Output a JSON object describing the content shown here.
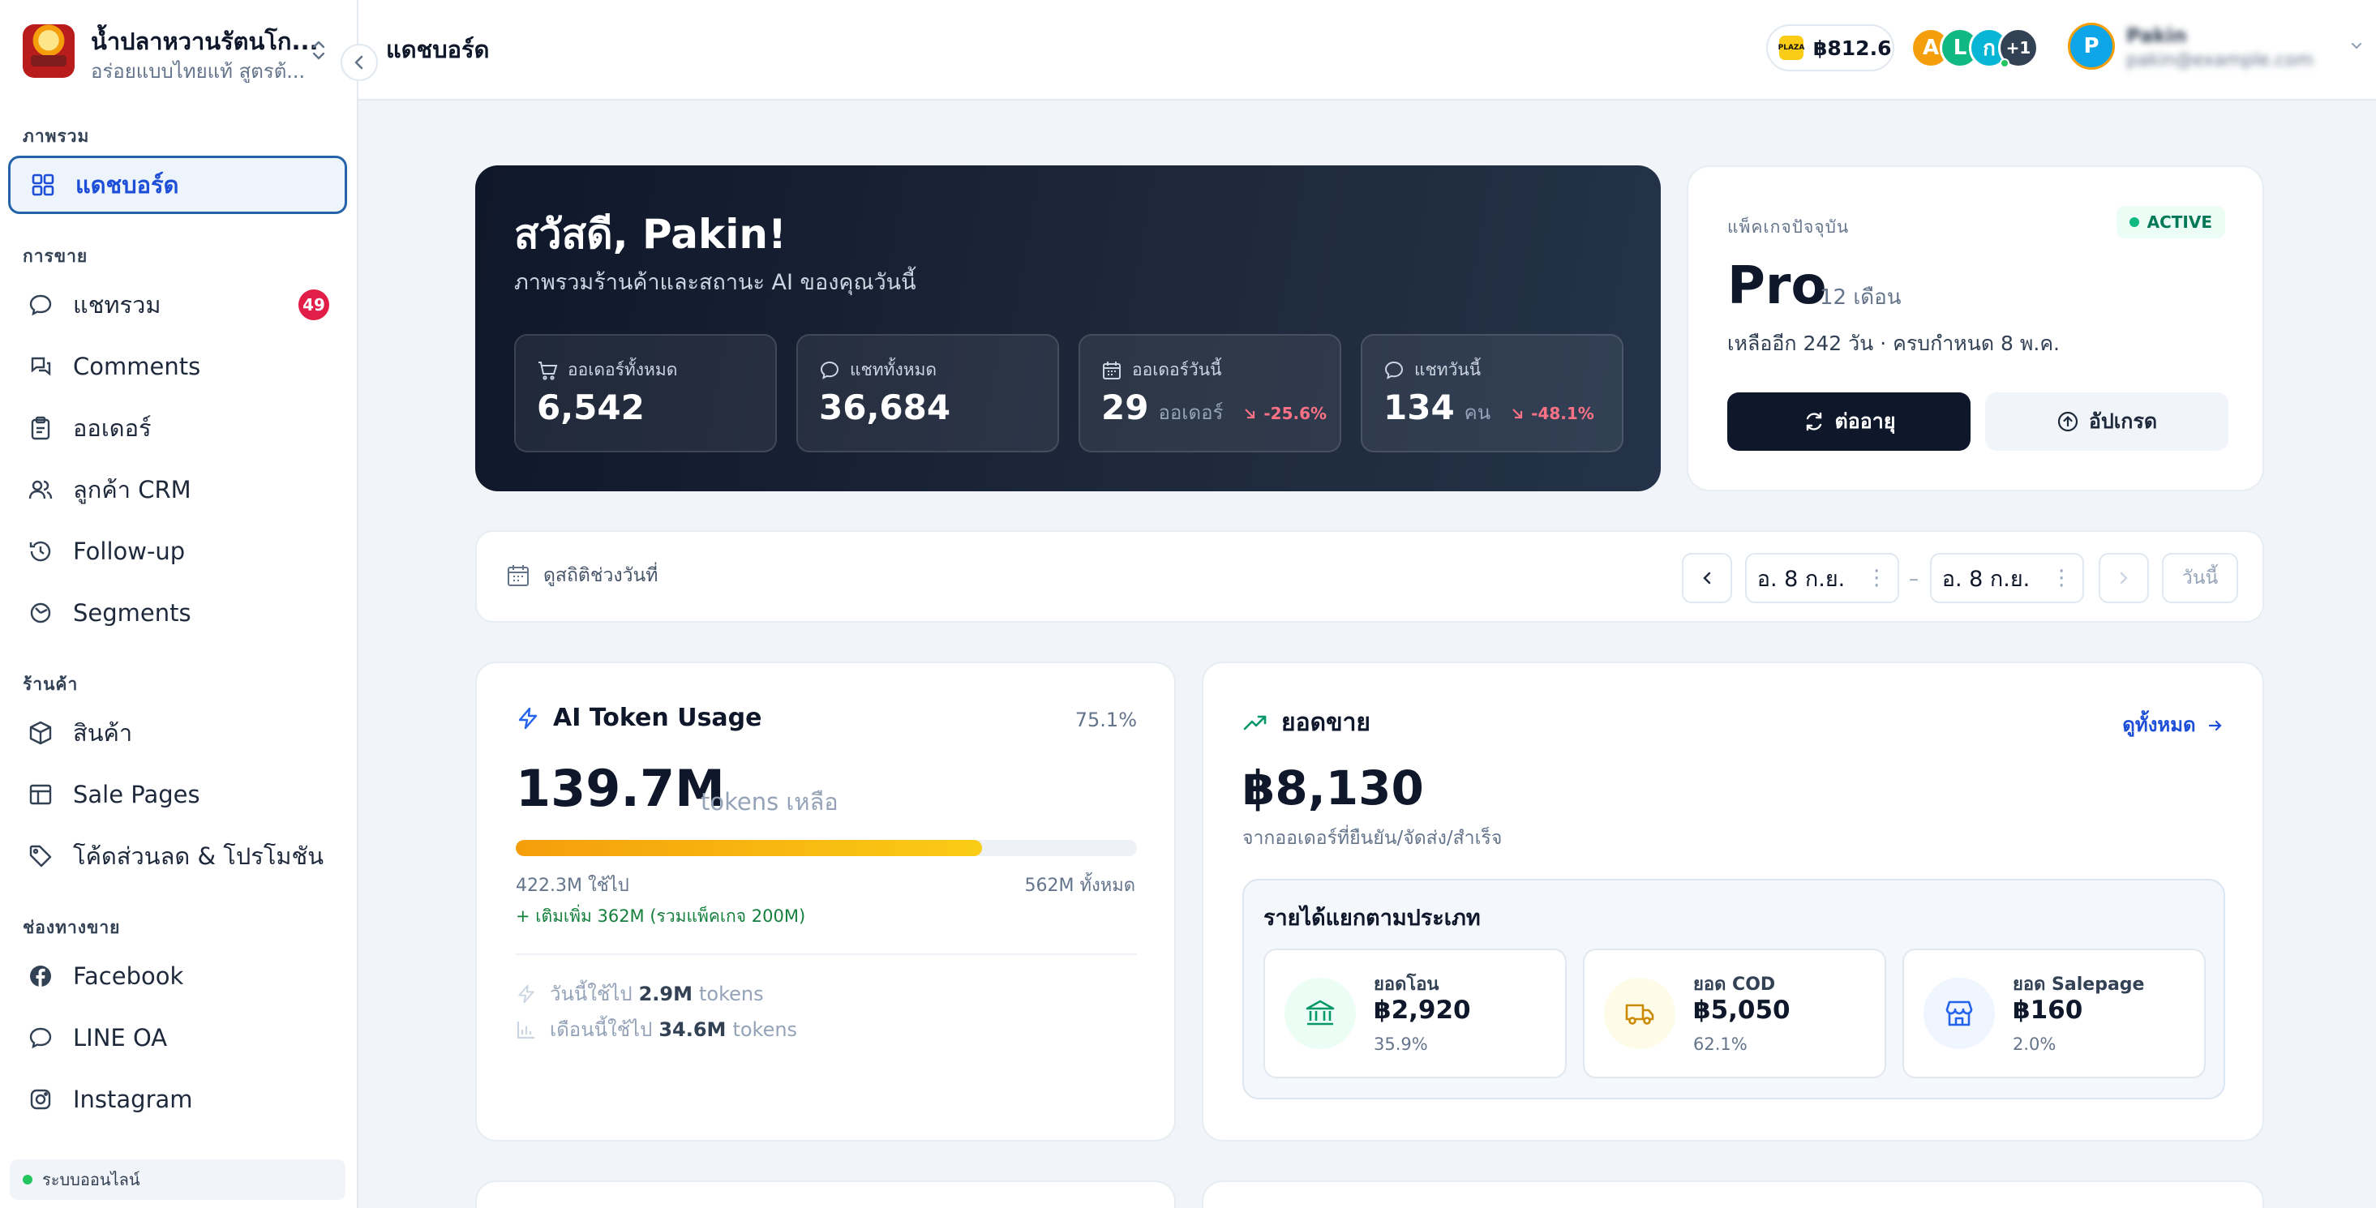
{
  "brand": {
    "name": "น้ำปลาหวานรัตนโก...",
    "tagline": "อร่อยแบบไทยแท้ สูตรต้..."
  },
  "sidebar": {
    "sections": [
      {
        "label": "ภาพรวม"
      },
      {
        "label": "การขาย"
      },
      {
        "label": "ร้านค้า"
      },
      {
        "label": "ช่องทางขาย"
      }
    ],
    "items": [
      {
        "label": "แดชบอร์ด",
        "icon": "grid-icon",
        "active": true
      },
      {
        "label": "แชทรวม",
        "icon": "chat-icon",
        "badge": "49"
      },
      {
        "label": "Comments",
        "icon": "comments-icon"
      },
      {
        "label": "ออเดอร์",
        "icon": "clipboard-icon"
      },
      {
        "label": "ลูกค้า CRM",
        "icon": "users-icon"
      },
      {
        "label": "Follow-up",
        "icon": "history-icon"
      },
      {
        "label": "Segments",
        "icon": "pie-icon"
      },
      {
        "label": "สินค้า",
        "icon": "box-icon"
      },
      {
        "label": "Sale Pages",
        "icon": "layout-icon"
      },
      {
        "label": "โค้ดส่วนลด & โปรโมชัน",
        "icon": "tag-icon"
      },
      {
        "label": "Facebook",
        "icon": "facebook-icon"
      },
      {
        "label": "LINE OA",
        "icon": "line-icon"
      },
      {
        "label": "Instagram",
        "icon": "instagram-icon"
      }
    ],
    "status": "ระบบออนไลน์"
  },
  "header": {
    "title": "แดชบอร์ด",
    "wallet": {
      "icon_text": "PLAZA",
      "amount": "฿812.6"
    },
    "avatars": [
      {
        "letter": "A",
        "color": "#f59e0b"
      },
      {
        "letter": "L",
        "color": "#10b981"
      },
      {
        "letter": "ก",
        "color": "#06b6d4"
      },
      {
        "letter": "+1",
        "color": "#334155"
      }
    ],
    "user": {
      "initial": "P",
      "name": "Pakin",
      "email": "pakin@example.com"
    }
  },
  "hero": {
    "greeting": "สวัสดี, Pakin!",
    "subtitle": "ภาพรวมร้านค้าและสถานะ AI ของคุณวันนี้",
    "stats": [
      {
        "label": "ออเดอร์ทั้งหมด",
        "value": "6,542",
        "unit": "",
        "change": ""
      },
      {
        "label": "แชททั้งหมด",
        "value": "36,684",
        "unit": "",
        "change": ""
      },
      {
        "label": "ออเดอร์วันนี้",
        "value": "29",
        "unit": "ออเดอร์",
        "change": "-25.6%"
      },
      {
        "label": "แชทวันนี้",
        "value": "134",
        "unit": "คน",
        "change": "-48.1%"
      }
    ]
  },
  "package": {
    "label": "แพ็คเกจปัจจุบัน",
    "status": "ACTIVE",
    "name": "Pro",
    "period": "12 เดือน",
    "remaining": "เหลืออีก 242 วัน · ครบกำหนด 8 พ.ค.",
    "renew_label": "ต่ออายุ",
    "upgrade_label": "อัปเกรด"
  },
  "range": {
    "label": "ดูสถิติช่วงวันที่",
    "from": "อ. 8 ก.ย.",
    "to": "อ. 8 ก.ย.",
    "separator": "–",
    "today_label": "วันนี้"
  },
  "token": {
    "title": "AI Token Usage",
    "percent": "75.1%",
    "percent_value": 75.1,
    "remaining": "139.7M",
    "remaining_unit": "tokens เหลือ",
    "used": "422.3M ใช้ไป",
    "total": "562M ทั้งหมด",
    "added": "+ เติมเพิ่ม 362M (รวมแพ็คเกจ 200M)",
    "today_prefix": "วันนี้ใช้ไป",
    "today_value": "2.9M",
    "month_prefix": "เดือนนี้ใช้ไป",
    "month_value": "34.6M",
    "unit": "tokens"
  },
  "sales": {
    "title": "ยอดขาย",
    "view_all": "ดูทั้งหมด",
    "total": "฿8,130",
    "subtitle": "จากออเดอร์ที่ยืนยัน/จัดส่ง/สำเร็จ",
    "breakdown_title": "รายได้แยกตามประเภท",
    "breakdown": [
      {
        "name": "ยอดโอน",
        "value": "฿2,920",
        "percent": "35.9%",
        "icon": "bank-icon",
        "bg": "#ecfdf5",
        "fg": "#059669"
      },
      {
        "name": "ยอด COD",
        "value": "฿5,050",
        "percent": "62.1%",
        "icon": "truck-icon",
        "bg": "#fefce8",
        "fg": "#ca8a04"
      },
      {
        "name": "ยอด Salepage",
        "value": "฿160",
        "percent": "2.0%",
        "icon": "store-icon",
        "bg": "#eff6ff",
        "fg": "#2563eb"
      }
    ]
  }
}
